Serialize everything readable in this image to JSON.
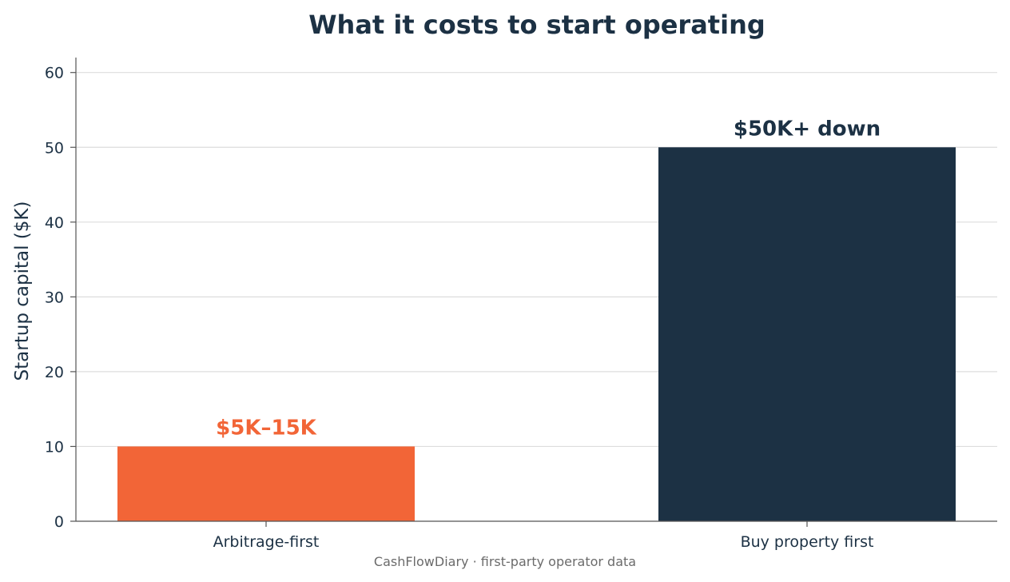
{
  "chart_data": {
    "type": "bar",
    "title": "What it costs to start operating",
    "xlabel": "",
    "ylabel": "Startup capital ($K)",
    "categories": [
      "Arbitrage-first",
      "Buy property first"
    ],
    "values": [
      10,
      50
    ],
    "data_labels": [
      "$5K–15K",
      "$50K+ down"
    ],
    "colors": [
      "#f26537",
      "#1c3144"
    ],
    "ylim": [
      0,
      62
    ],
    "yticks": [
      0,
      10,
      20,
      30,
      40,
      50,
      60
    ],
    "grid": "horizontal",
    "source": "CashFlowDiary · first-party operator data"
  }
}
